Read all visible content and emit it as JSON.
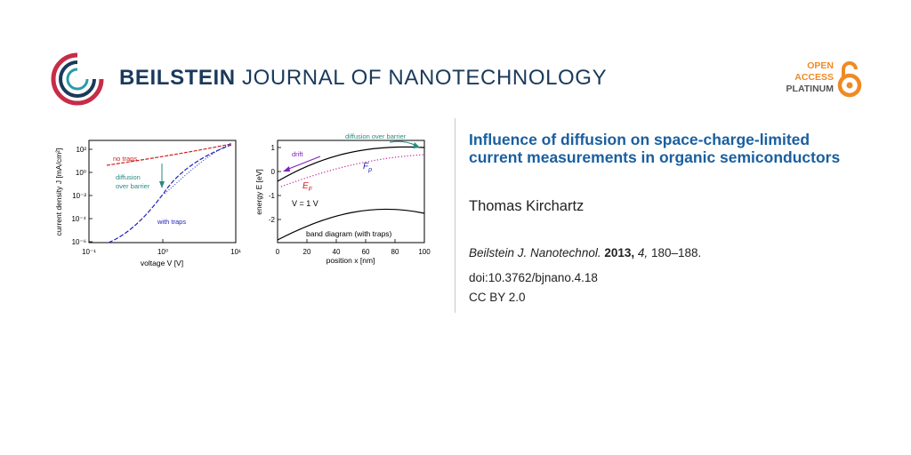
{
  "header": {
    "journal_bold": "BEILSTEIN",
    "journal_rest": "JOURNAL OF NANOTECHNOLOGY",
    "open_access": [
      "OPEN",
      "ACCESS",
      "PLATINUM"
    ],
    "colors": {
      "brand_blue": "#1a3a5c",
      "accent_red": "#c72c48",
      "teal": "#2a9aa8",
      "orange": "#f08a24"
    }
  },
  "article": {
    "title": "Influence of diffusion on space-charge-limited current measurements in organic semiconductors",
    "author": "Thomas Kirchartz",
    "citation": {
      "journal": "Beilstein J. Nanotechnol.",
      "year": "2013,",
      "volume": "4,",
      "pages": "180–188."
    },
    "doi": "doi:10.3762/bjnano.4.18",
    "license": "CC BY 2.0"
  },
  "graphical_abstract": {
    "left_plot": {
      "ylabel": "current density J [mA/cm²]",
      "xlabel": "voltage V [V]",
      "yticks": [
        "10²",
        "10⁰",
        "10⁻²",
        "10⁻⁴",
        "10⁻⁶"
      ],
      "xticks": [
        "10⁻¹",
        "10⁰",
        "10¹"
      ],
      "label_no_traps": "no traps",
      "label_with_traps": "with traps",
      "label_diffusion": [
        "diffusion",
        "over barrier"
      ]
    },
    "right_plot": {
      "ylabel": "energy E [eV]",
      "xlabel": "position x [nm]",
      "yticks": [
        "1",
        "0",
        "-1",
        "-2"
      ],
      "xticks": [
        "0",
        "20",
        "40",
        "60",
        "80",
        "100"
      ],
      "label_diffusion": "diffusion over barrier",
      "label_drift": "drift",
      "label_fp": "F",
      "label_fp_sub": "p",
      "label_efn": "E",
      "label_efn_sub": "F",
      "label_voltage": "V = 1 V",
      "label_band": "band diagram (with traps)"
    }
  }
}
